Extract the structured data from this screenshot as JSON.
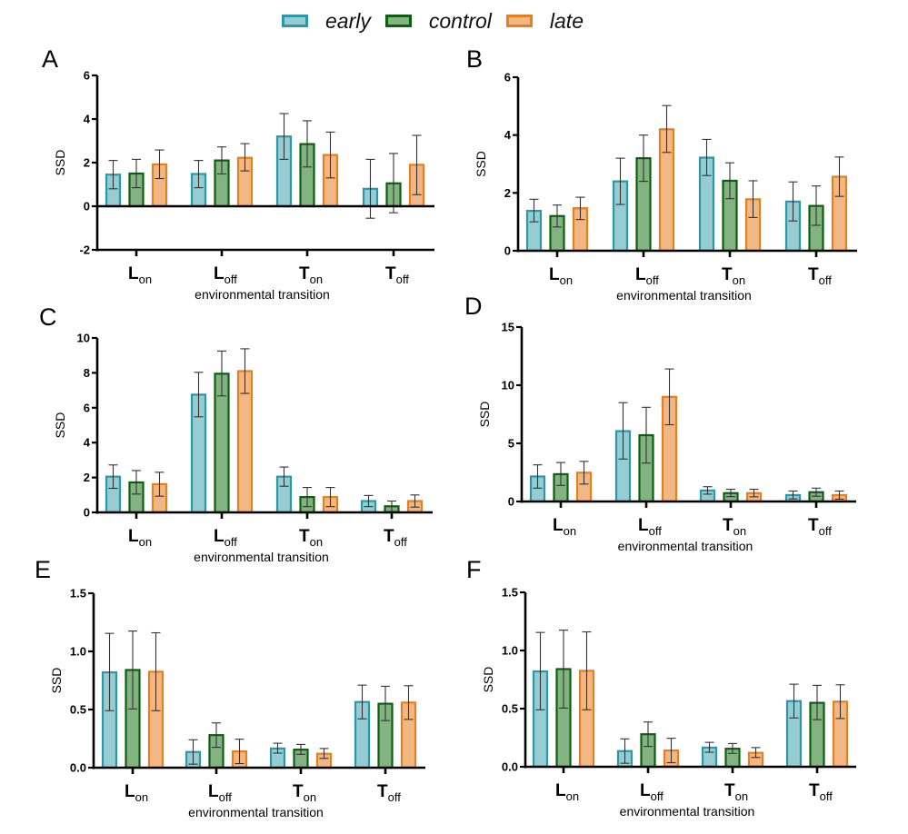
{
  "legend": [
    {
      "key": "early",
      "label": "early",
      "fill": "#95CDD2",
      "stroke": "#2B97A8"
    },
    {
      "key": "control",
      "label": "control",
      "fill": "#82B381",
      "stroke": "#0E5E12"
    },
    {
      "key": "late",
      "label": "late",
      "fill": "#F2B782",
      "stroke": "#E3801F"
    }
  ],
  "chart_data": [
    {
      "panel": "A",
      "type": "bar",
      "xlabel": "environmental transition",
      "ylabel": "SSD",
      "categories": [
        {
          "main": "L",
          "sub": "on"
        },
        {
          "main": "L",
          "sub": "off"
        },
        {
          "main": "T",
          "sub": "on"
        },
        {
          "main": "T",
          "sub": "off"
        }
      ],
      "ylim": [
        -2,
        6
      ],
      "yticks": [
        -2,
        0,
        2,
        4,
        6
      ],
      "ytick_labels": [
        "-2",
        "0",
        "2",
        "4",
        "6"
      ],
      "series": [
        {
          "name": "early",
          "values": [
            1.45,
            1.48,
            3.2,
            0.8
          ],
          "err_low": [
            0.8,
            0.85,
            2.15,
            -0.55
          ],
          "err_high": [
            2.1,
            2.1,
            4.25,
            2.15
          ]
        },
        {
          "name": "control",
          "values": [
            1.5,
            2.1,
            2.85,
            1.05
          ],
          "err_low": [
            0.85,
            1.48,
            1.8,
            -0.3
          ],
          "err_high": [
            2.15,
            2.72,
            3.92,
            2.42
          ]
        },
        {
          "name": "late",
          "values": [
            1.92,
            2.22,
            2.35,
            1.9
          ],
          "err_low": [
            1.27,
            1.62,
            1.3,
            0.53
          ],
          "err_high": [
            2.58,
            2.87,
            3.4,
            3.25
          ]
        }
      ]
    },
    {
      "panel": "B",
      "type": "bar",
      "xlabel": "environmental transition",
      "ylabel": "SSD",
      "categories": [
        {
          "main": "L",
          "sub": "on"
        },
        {
          "main": "L",
          "sub": "off"
        },
        {
          "main": "T",
          "sub": "on"
        },
        {
          "main": "T",
          "sub": "off"
        }
      ],
      "ylim": [
        0,
        6
      ],
      "yticks": [
        0,
        2,
        4,
        6
      ],
      "ytick_labels": [
        "0",
        "2",
        "4",
        "6"
      ],
      "series": [
        {
          "name": "early",
          "values": [
            1.38,
            2.4,
            3.22,
            1.7
          ],
          "err_low": [
            1.0,
            1.6,
            2.6,
            1.03
          ],
          "err_high": [
            1.78,
            3.2,
            3.85,
            2.38
          ]
        },
        {
          "name": "control",
          "values": [
            1.2,
            3.2,
            2.42,
            1.55
          ],
          "err_low": [
            0.82,
            2.4,
            1.8,
            0.88
          ],
          "err_high": [
            1.58,
            4.0,
            3.04,
            2.24
          ]
        },
        {
          "name": "late",
          "values": [
            1.47,
            4.2,
            1.78,
            2.56
          ],
          "err_low": [
            1.08,
            3.4,
            1.15,
            1.88
          ],
          "err_high": [
            1.85,
            5.02,
            2.42,
            3.24
          ]
        }
      ]
    },
    {
      "panel": "C",
      "type": "bar",
      "xlabel": "environmental transition",
      "ylabel": "SSD",
      "categories": [
        {
          "main": "L",
          "sub": "on"
        },
        {
          "main": "L",
          "sub": "off"
        },
        {
          "main": "T",
          "sub": "on"
        },
        {
          "main": "T",
          "sub": "off"
        }
      ],
      "ylim": [
        0,
        10
      ],
      "yticks": [
        0,
        2,
        4,
        6,
        8,
        10
      ],
      "ytick_labels": [
        "0",
        "2",
        "4",
        "6",
        "8",
        "10"
      ],
      "series": [
        {
          "name": "early",
          "values": [
            2.05,
            6.75,
            2.05,
            0.65
          ],
          "err_low": [
            1.38,
            5.48,
            1.5,
            0.33
          ],
          "err_high": [
            2.72,
            8.03,
            2.6,
            0.97
          ]
        },
        {
          "name": "control",
          "values": [
            1.72,
            7.95,
            0.88,
            0.35
          ],
          "err_low": [
            1.05,
            6.68,
            0.33,
            0.05
          ],
          "err_high": [
            2.4,
            9.25,
            1.43,
            0.65
          ]
        },
        {
          "name": "late",
          "values": [
            1.62,
            8.1,
            0.88,
            0.65
          ],
          "err_low": [
            0.93,
            6.82,
            0.33,
            0.3
          ],
          "err_high": [
            2.3,
            9.38,
            1.43,
            1.0
          ]
        }
      ]
    },
    {
      "panel": "D",
      "type": "bar",
      "xlabel": "environmental transition",
      "ylabel": "SSD",
      "categories": [
        {
          "main": "L",
          "sub": "on"
        },
        {
          "main": "L",
          "sub": "off"
        },
        {
          "main": "T",
          "sub": "on"
        },
        {
          "main": "T",
          "sub": "off"
        }
      ],
      "ylim": [
        0,
        15
      ],
      "yticks": [
        0,
        5,
        10,
        15
      ],
      "ytick_labels": [
        "0",
        "5",
        "10",
        "15"
      ],
      "series": [
        {
          "name": "early",
          "values": [
            2.15,
            6.05,
            0.95,
            0.55
          ],
          "err_low": [
            1.15,
            3.65,
            0.63,
            0.22
          ],
          "err_high": [
            3.15,
            8.5,
            1.27,
            0.9
          ]
        },
        {
          "name": "control",
          "values": [
            2.35,
            5.7,
            0.72,
            0.8
          ],
          "err_low": [
            1.38,
            3.3,
            0.42,
            0.45
          ],
          "err_high": [
            3.35,
            8.1,
            1.05,
            1.15
          ]
        },
        {
          "name": "late",
          "values": [
            2.48,
            9.0,
            0.72,
            0.55
          ],
          "err_low": [
            1.5,
            6.6,
            0.4,
            0.2
          ],
          "err_high": [
            3.45,
            11.4,
            1.05,
            0.9
          ]
        }
      ]
    },
    {
      "panel": "E",
      "type": "bar",
      "xlabel": "environmental transition",
      "ylabel": "SSD",
      "categories": [
        {
          "main": "L",
          "sub": "on"
        },
        {
          "main": "L",
          "sub": "off"
        },
        {
          "main": "T",
          "sub": "on"
        },
        {
          "main": "T",
          "sub": "off"
        }
      ],
      "ylim": [
        0,
        1.5
      ],
      "yticks": [
        0,
        0.5,
        1.0,
        1.5
      ],
      "ytick_labels": [
        "0.0",
        "0.5",
        "1.0",
        "1.5"
      ],
      "series": [
        {
          "name": "early",
          "values": [
            0.82,
            0.135,
            0.165,
            0.565
          ],
          "err_low": [
            0.49,
            0.03,
            0.125,
            0.42
          ],
          "err_high": [
            1.155,
            0.24,
            0.21,
            0.71
          ]
        },
        {
          "name": "control",
          "values": [
            0.84,
            0.28,
            0.155,
            0.55
          ],
          "err_low": [
            0.505,
            0.175,
            0.115,
            0.405
          ],
          "err_high": [
            1.175,
            0.385,
            0.2,
            0.7
          ]
        },
        {
          "name": "late",
          "values": [
            0.825,
            0.14,
            0.12,
            0.56
          ],
          "err_low": [
            0.49,
            0.035,
            0.08,
            0.415
          ],
          "err_high": [
            1.16,
            0.245,
            0.165,
            0.705
          ]
        }
      ]
    },
    {
      "panel": "F",
      "type": "bar",
      "xlabel": "environmental transition",
      "ylabel": "SSD",
      "categories": [
        {
          "main": "L",
          "sub": "on"
        },
        {
          "main": "L",
          "sub": "off"
        },
        {
          "main": "T",
          "sub": "on"
        },
        {
          "main": "T",
          "sub": "off"
        }
      ],
      "ylim": [
        0,
        1.5
      ],
      "yticks": [
        0,
        0.5,
        1.0,
        1.5
      ],
      "ytick_labels": [
        "0.0",
        "0.5",
        "1.0",
        "1.5"
      ],
      "series": [
        {
          "name": "early",
          "values": [
            0.82,
            0.135,
            0.165,
            0.565
          ],
          "err_low": [
            0.49,
            0.03,
            0.125,
            0.42
          ],
          "err_high": [
            1.155,
            0.24,
            0.21,
            0.71
          ]
        },
        {
          "name": "control",
          "values": [
            0.84,
            0.28,
            0.155,
            0.55
          ],
          "err_low": [
            0.505,
            0.175,
            0.115,
            0.405
          ],
          "err_high": [
            1.175,
            0.385,
            0.2,
            0.7
          ]
        },
        {
          "name": "late",
          "values": [
            0.825,
            0.14,
            0.12,
            0.56
          ],
          "err_low": [
            0.49,
            0.035,
            0.08,
            0.415
          ],
          "err_high": [
            1.16,
            0.245,
            0.165,
            0.705
          ]
        }
      ]
    }
  ]
}
